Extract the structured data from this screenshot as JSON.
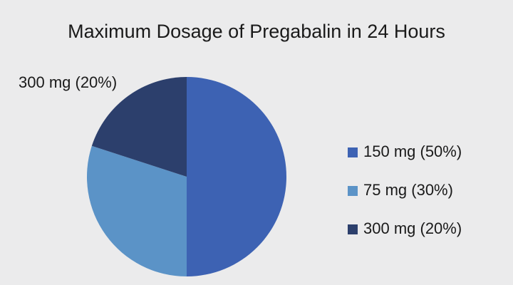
{
  "chart_data": {
    "type": "pie",
    "title": "Maximum Dosage of Pregabalin in 24 Hours",
    "categories": [
      "150 mg (50%)",
      "75 mg (30%)",
      "300 mg (20%)"
    ],
    "values": [
      50,
      30,
      20
    ],
    "colors": [
      "#3d62b3",
      "#5b93c7",
      "#2c3f6c"
    ],
    "annotation": "300 mg (20%)",
    "legend": "right"
  }
}
